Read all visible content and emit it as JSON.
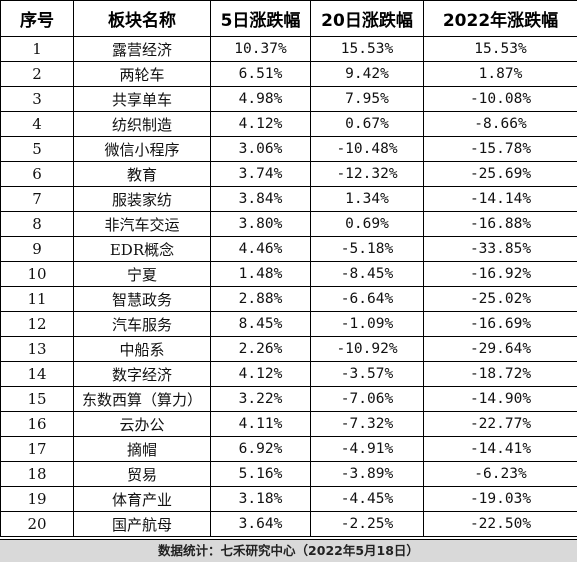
{
  "table": {
    "headers": [
      "序号",
      "板块名称",
      "5日涨跌幅",
      "20日涨跌幅",
      "2022年涨跌幅"
    ],
    "rows": [
      [
        "1",
        "露营经济",
        "10.37%",
        "15.53%",
        "15.53%"
      ],
      [
        "2",
        "两轮车",
        "6.51%",
        "9.42%",
        "1.87%"
      ],
      [
        "3",
        "共享单车",
        "4.98%",
        "7.95%",
        "-10.08%"
      ],
      [
        "4",
        "纺织制造",
        "4.12%",
        "0.67%",
        "-8.66%"
      ],
      [
        "5",
        "微信小程序",
        "3.06%",
        "-10.48%",
        "-15.78%"
      ],
      [
        "6",
        "教育",
        "3.74%",
        "-12.32%",
        "-25.69%"
      ],
      [
        "7",
        "服装家纺",
        "3.84%",
        "1.34%",
        "-14.14%"
      ],
      [
        "8",
        "非汽车交运",
        "3.80%",
        "0.69%",
        "-16.88%"
      ],
      [
        "9",
        "EDR概念",
        "4.46%",
        "-5.18%",
        "-33.85%"
      ],
      [
        "10",
        "宁夏",
        "1.48%",
        "-8.45%",
        "-16.92%"
      ],
      [
        "11",
        "智慧政务",
        "2.88%",
        "-6.64%",
        "-25.02%"
      ],
      [
        "12",
        "汽车服务",
        "8.45%",
        "-1.09%",
        "-16.69%"
      ],
      [
        "13",
        "中船系",
        "2.26%",
        "-10.92%",
        "-29.64%"
      ],
      [
        "14",
        "数字经济",
        "4.12%",
        "-3.57%",
        "-18.72%"
      ],
      [
        "15",
        "东数西算（算力）",
        "3.22%",
        "-7.06%",
        "-14.90%"
      ],
      [
        "16",
        "云办公",
        "4.11%",
        "-7.32%",
        "-22.77%"
      ],
      [
        "17",
        "摘帽",
        "6.92%",
        "-4.91%",
        "-14.41%"
      ],
      [
        "18",
        "贸易",
        "5.16%",
        "-3.89%",
        "-6.23%"
      ],
      [
        "19",
        "体育产业",
        "3.18%",
        "-4.45%",
        "-19.03%"
      ],
      [
        "20",
        "国产航母",
        "3.64%",
        "-2.25%",
        "-22.50%"
      ]
    ]
  },
  "footer": {
    "source_text": "数据统计：七禾研究中心（2022年5月18日）"
  }
}
